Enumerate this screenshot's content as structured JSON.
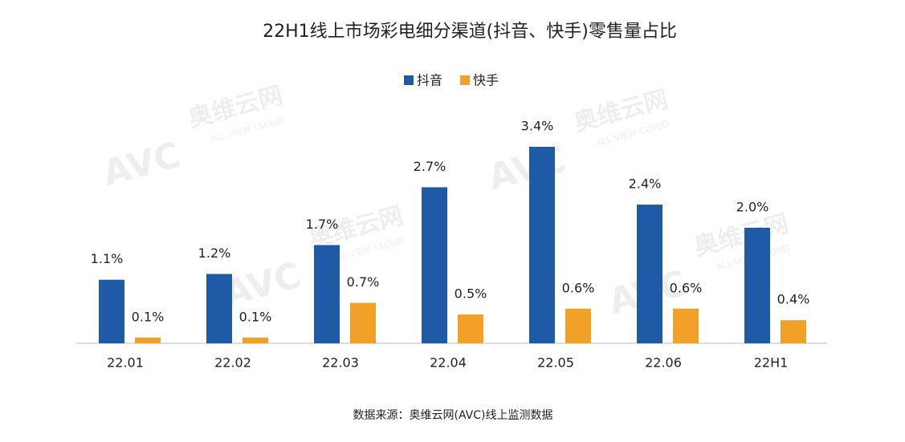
{
  "chart_data": {
    "type": "bar",
    "title": "22H1线上市场彩电细分渠道(抖音、快手)零售量占比",
    "categories": [
      "22.01",
      "22.02",
      "22.03",
      "22.04",
      "22.05",
      "22.06",
      "22H1"
    ],
    "series": [
      {
        "name": "抖音",
        "color": "#1f5aa6",
        "values": [
          1.1,
          1.2,
          1.7,
          2.7,
          3.4,
          2.4,
          2.0
        ],
        "value_labels": [
          "1.1%",
          "1.2%",
          "1.7%",
          "2.7%",
          "3.4%",
          "2.4%",
          "2.0%"
        ]
      },
      {
        "name": "快手",
        "color": "#f2a128",
        "values": [
          0.1,
          0.1,
          0.7,
          0.5,
          0.6,
          0.6,
          0.4
        ],
        "value_labels": [
          "0.1%",
          "0.1%",
          "0.7%",
          "0.5%",
          "0.6%",
          "0.6%",
          "0.4%"
        ]
      }
    ],
    "legend": "top",
    "source": "数据来源：奥维云网(AVC)线上监测数据",
    "watermark": {
      "logo": "AVC",
      "name": "奥维云网",
      "tagline": "ALL VIEW CLOUD"
    }
  }
}
